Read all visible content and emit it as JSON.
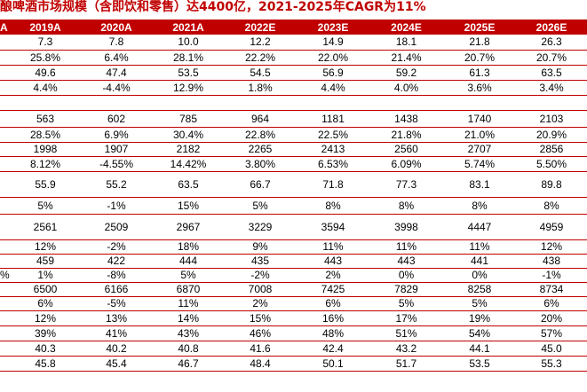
{
  "title": "酿啤酒市场规模（含即饮和零售）达4400亿，2021-2025年CAGR为11%",
  "columns": [
    "2019A",
    "2020A",
    "2021A",
    "2022E",
    "2023E",
    "2024E",
    "2025E",
    "2026E"
  ],
  "header_label": "A",
  "rows": [
    {
      "label": "",
      "values": [
        "7.3",
        "7.8",
        "10.0",
        "12.2",
        "14.9",
        "18.1",
        "21.8",
        "26.3"
      ]
    },
    {
      "label": "",
      "values": [
        "25.8%",
        "6.4%",
        "28.1%",
        "22.2%",
        "22.0%",
        "21.4%",
        "20.7%",
        "20.7%"
      ]
    },
    {
      "label": "",
      "values": [
        "49.6",
        "47.4",
        "53.5",
        "54.5",
        "56.9",
        "59.2",
        "61.3",
        "63.5"
      ]
    },
    {
      "label": "",
      "values": [
        "4.4%",
        "-4.4%",
        "12.9%",
        "1.8%",
        "4.4%",
        "4.0%",
        "3.6%",
        "3.4%"
      ]
    },
    {
      "label": "",
      "values": [
        "",
        "",
        "",
        "",
        "",
        "",
        "",
        ""
      ]
    },
    {
      "label": "",
      "values": [
        "563",
        "602",
        "785",
        "964",
        "1181",
        "1438",
        "1740",
        "2103"
      ]
    },
    {
      "label": "",
      "values": [
        "28.5%",
        "6.9%",
        "30.4%",
        "22.8%",
        "22.5%",
        "21.8%",
        "21.0%",
        "20.9%"
      ]
    },
    {
      "label": "      4",
      "values": [
        "1998",
        "1907",
        "2182",
        "2265",
        "2413",
        "2560",
        "2707",
        "2856"
      ]
    },
    {
      "label": "",
      "values": [
        "8.12%",
        "-4.55%",
        "14.42%",
        "3.80%",
        "6.53%",
        "6.09%",
        "5.74%",
        "5.50%"
      ]
    },
    {
      "label": "",
      "values": [
        "55.9",
        "55.2",
        "63.5",
        "66.7",
        "71.8",
        "77.3",
        "83.1",
        "89.8"
      ]
    },
    {
      "label": "",
      "values": [
        "5%",
        "-1%",
        "15%",
        "5%",
        "8%",
        "8%",
        "8%",
        "8%"
      ]
    },
    {
      "label": "       5",
      "values": [
        "2561",
        "2509",
        "2967",
        "3229",
        "3594",
        "3998",
        "4447",
        "4959"
      ]
    },
    {
      "label": "",
      "values": [
        "12%",
        "-2%",
        "18%",
        "9%",
        "11%",
        "11%",
        "11%",
        "12%"
      ]
    },
    {
      "label": "",
      "values": [
        "459",
        "422",
        "444",
        "435",
        "443",
        "443",
        "441",
        "438"
      ]
    },
    {
      "label": "%",
      "values": [
        "1%",
        "-8%",
        "5%",
        "-2%",
        "2%",
        "0%",
        "0%",
        "-1%"
      ]
    },
    {
      "label": "       4",
      "values": [
        "6500",
        "6166",
        "6870",
        "7008",
        "7425",
        "7829",
        "8258",
        "8734"
      ]
    },
    {
      "label": "",
      "values": [
        "6%",
        "-5%",
        "11%",
        "2%",
        "6%",
        "5%",
        "5%",
        "6%"
      ]
    },
    {
      "label": "",
      "values": [
        "12%",
        "13%",
        "14%",
        "15%",
        "16%",
        "17%",
        "19%",
        "20%"
      ]
    },
    {
      "label": "",
      "values": [
        "39%",
        "41%",
        "43%",
        "46%",
        "48%",
        "51%",
        "54%",
        "57%"
      ]
    },
    {
      "label": "",
      "values": [
        "40.3",
        "40.2",
        "40.8",
        "41.6",
        "42.4",
        "43.2",
        "44.1",
        "45.0"
      ]
    },
    {
      "label": "",
      "values": [
        "45.8",
        "45.4",
        "46.7",
        "48.4",
        "50.1",
        "51.7",
        "53.5",
        "55.3"
      ]
    }
  ]
}
